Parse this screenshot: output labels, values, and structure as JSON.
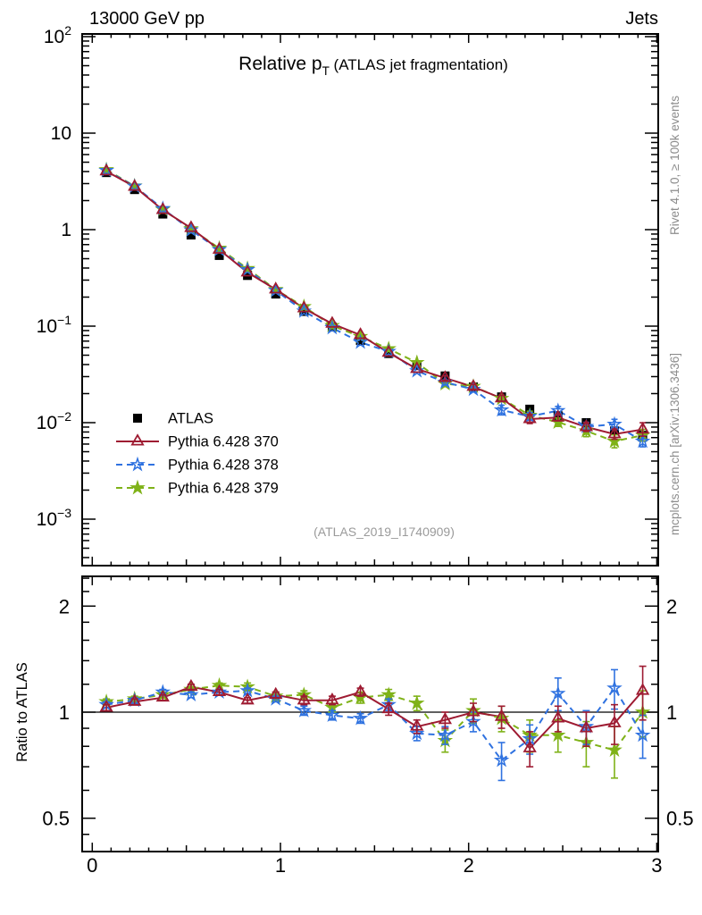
{
  "header": {
    "left": "13000 GeV pp",
    "right": "Jets"
  },
  "title": {
    "main": "Relative p",
    "sub": "T",
    "paren": " (ATLAS jet fragmentation)"
  },
  "watermark": "(ATLAS_2019_I1740909)",
  "side_labels": {
    "top": "Rivet 4.1.0, ≥ 100k events",
    "bottom": "mcplots.cern.ch [arXiv:1306.3436]"
  },
  "ratio_ylabel": "Ratio to ATLAS",
  "colors": {
    "atlas": "#000000",
    "p370": "#9e1b32",
    "p378": "#2f72e0",
    "p379": "#7fb218",
    "frame": "#000000",
    "gray_text": "#8c8c8c",
    "watermark": "#9a9a9a"
  },
  "legend": [
    {
      "label": "ATLAS",
      "color": "#000000",
      "marker": "square",
      "line": "none"
    },
    {
      "label": "Pythia 6.428 370",
      "color": "#9e1b32",
      "marker": "triangle",
      "line": "solid"
    },
    {
      "label": "Pythia 6.428 378",
      "color": "#2f72e0",
      "marker": "star-open",
      "line": "dashed"
    },
    {
      "label": "Pythia 6.428 379",
      "color": "#7fb218",
      "marker": "star-filled",
      "line": "dashed"
    }
  ],
  "axes": {
    "xticks": [
      {
        "v": 0,
        "label": "0"
      },
      {
        "v": 1,
        "label": "1"
      },
      {
        "v": 2,
        "label": "2"
      },
      {
        "v": 3,
        "label": "3"
      }
    ],
    "main_yticks": [
      {
        "v": 100,
        "label": "10^2"
      },
      {
        "v": 10,
        "label": "10"
      },
      {
        "v": 1,
        "label": "1"
      },
      {
        "v": 0.1,
        "label": "10^−1"
      },
      {
        "v": 0.01,
        "label": "10^−2"
      },
      {
        "v": 0.001,
        "label": "10^−3"
      }
    ],
    "ratio_yticks": [
      {
        "v": 2,
        "label": "2"
      },
      {
        "v": 1,
        "label": "1"
      },
      {
        "v": 0.5,
        "label": "0.5"
      }
    ]
  },
  "chart_data": [
    {
      "type": "line",
      "title": "Relative pT (ATLAS jet fragmentation)",
      "xlabel": "",
      "ylabel": "",
      "xlim": [
        -0.054,
        3.008
      ],
      "ylog": true,
      "ylim": [
        0.00033,
        107
      ],
      "grid": false,
      "legend_position": "center-left",
      "x": [
        0.075,
        0.225,
        0.375,
        0.525,
        0.675,
        0.825,
        0.975,
        1.125,
        1.275,
        1.425,
        1.575,
        1.725,
        1.875,
        2.025,
        2.175,
        2.325,
        2.475,
        2.625,
        2.775,
        2.925
      ],
      "series": [
        {
          "name": "ATLAS",
          "values": [
            3.9,
            2.6,
            1.45,
            0.88,
            0.54,
            0.335,
            0.215,
            0.142,
            0.098,
            0.071,
            0.052,
            0.0395,
            0.0305,
            0.0235,
            0.0185,
            0.0138,
            0.0118,
            0.01,
            0.0082,
            0.0074
          ],
          "err_rel": [
            0.02,
            0.02,
            0.02,
            0.02,
            0.02,
            0.02,
            0.02,
            0.02,
            0.025,
            0.025,
            0.03,
            0.03,
            0.03,
            0.035,
            0.04,
            0.04,
            0.045,
            0.05,
            0.055,
            0.06
          ]
        },
        {
          "name": "Pythia 6.428 370",
          "values": [
            4.02,
            2.78,
            1.6,
            1.04,
            0.62,
            0.36,
            0.24,
            0.153,
            0.106,
            0.081,
            0.053,
            0.036,
            0.029,
            0.0235,
            0.0179,
            0.0109,
            0.0113,
            0.009,
            0.0076,
            0.0085
          ]
        },
        {
          "name": "Pythia 6.428 378",
          "values": [
            4.1,
            2.81,
            1.65,
            0.99,
            0.62,
            0.385,
            0.234,
            0.143,
            0.096,
            0.068,
            0.0546,
            0.0344,
            0.0262,
            0.0221,
            0.0135,
            0.0116,
            0.0133,
            0.0091,
            0.0096,
            0.0064
          ]
        },
        {
          "name": "Pythia 6.428 379",
          "values": [
            4.17,
            2.83,
            1.62,
            1.02,
            0.64,
            0.395,
            0.239,
            0.159,
            0.101,
            0.078,
            0.0582,
            0.0419,
            0.0253,
            0.0237,
            0.0178,
            0.0119,
            0.0101,
            0.0082,
            0.0064,
            0.0074
          ]
        }
      ]
    },
    {
      "type": "line",
      "title": "Ratio to ATLAS",
      "ylog": true,
      "ylim": [
        0.402,
        2.43
      ],
      "reference_line": 1.0,
      "x": [
        0.075,
        0.225,
        0.375,
        0.525,
        0.675,
        0.825,
        0.975,
        1.125,
        1.275,
        1.425,
        1.575,
        1.725,
        1.875,
        2.025,
        2.175,
        2.325,
        2.475,
        2.625,
        2.775,
        2.925
      ],
      "series": [
        {
          "name": "Pythia 6.428 370",
          "ratio": [
            1.03,
            1.07,
            1.1,
            1.18,
            1.14,
            1.08,
            1.12,
            1.08,
            1.08,
            1.14,
            1.02,
            0.91,
            0.95,
            1.0,
            0.97,
            0.79,
            0.96,
            0.9,
            0.93,
            1.15
          ],
          "err": [
            0.02,
            0.02,
            0.02,
            0.02,
            0.02,
            0.02,
            0.02,
            0.03,
            0.03,
            0.03,
            0.04,
            0.04,
            0.05,
            0.06,
            0.07,
            0.09,
            0.08,
            0.1,
            0.12,
            0.2
          ]
        },
        {
          "name": "Pythia 6.428 378",
          "ratio": [
            1.05,
            1.08,
            1.14,
            1.12,
            1.14,
            1.15,
            1.09,
            1.01,
            0.98,
            0.96,
            1.05,
            0.87,
            0.86,
            0.94,
            0.73,
            0.84,
            1.13,
            0.91,
            1.17,
            0.86
          ],
          "err": [
            0.02,
            0.02,
            0.02,
            0.02,
            0.02,
            0.02,
            0.02,
            0.03,
            0.03,
            0.03,
            0.04,
            0.04,
            0.05,
            0.06,
            0.09,
            0.08,
            0.12,
            0.1,
            0.15,
            0.12
          ]
        },
        {
          "name": "Pythia 6.428 379",
          "ratio": [
            1.07,
            1.09,
            1.12,
            1.16,
            1.19,
            1.18,
            1.11,
            1.12,
            1.03,
            1.1,
            1.12,
            1.06,
            0.83,
            1.01,
            0.96,
            0.86,
            0.86,
            0.82,
            0.78,
            1.0
          ],
          "err": [
            0.02,
            0.02,
            0.02,
            0.02,
            0.02,
            0.03,
            0.03,
            0.03,
            0.03,
            0.04,
            0.04,
            0.05,
            0.06,
            0.08,
            0.08,
            0.09,
            0.09,
            0.12,
            0.13,
            0.15
          ]
        }
      ]
    }
  ]
}
